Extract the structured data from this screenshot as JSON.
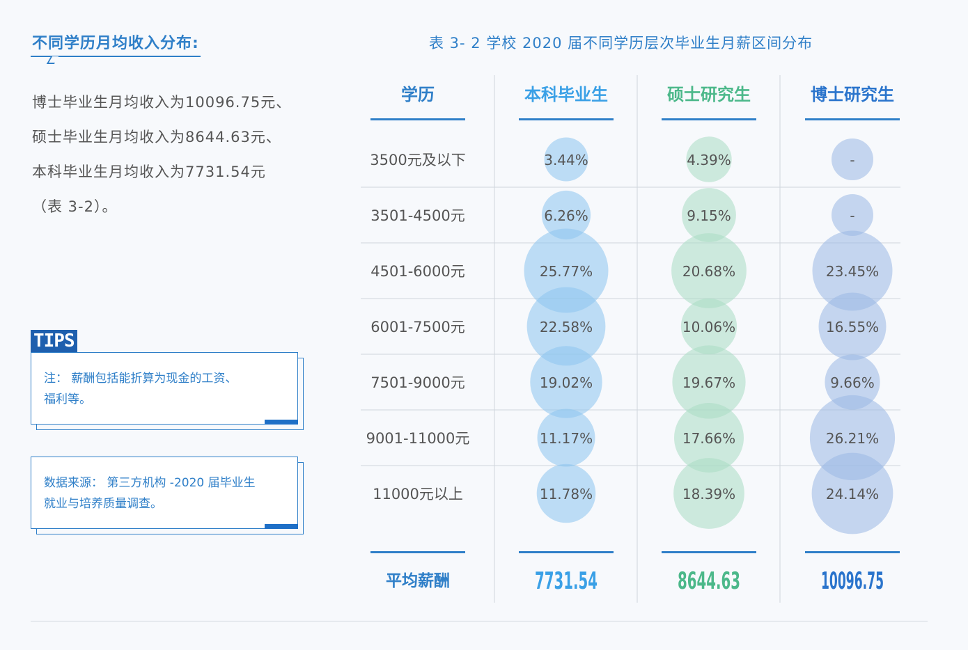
{
  "left_panel": {
    "heading": "不同学历月均收入分布:",
    "summary_lines": [
      "博士毕业生月均收入为10096.75元、",
      "硕士毕业生月均收入为8644.63元、",
      "本科毕业生月均收入为7731.54元",
      "（表 3-2）。"
    ],
    "tips_label": "TIPS",
    "note_lines": [
      "注：  薪酬包括能折算为现金的工资、",
      "福利等。"
    ],
    "source_lines": [
      "数据来源：  第三方机构 -2020 届毕业生",
      "就业与培养质量调查。"
    ]
  },
  "chart_data": {
    "type": "table",
    "title": "表 3- 2  学校 2020 届不同学历层次毕业生月薪区间分布",
    "row_header": "学历",
    "categories": [
      "3500元及以下",
      "3501-4500元",
      "4501-6000元",
      "6001-7500元",
      "7501-9000元",
      "9001-11000元",
      "11000元以上"
    ],
    "series": [
      {
        "name": "本科毕业生",
        "color": "#8dc5ef",
        "header_color": "#3aa0e6",
        "values": [
          3.44,
          6.26,
          25.77,
          22.58,
          19.02,
          11.17,
          11.78
        ],
        "labels": [
          "3.44%",
          "6.26%",
          "25.77%",
          "22.58%",
          "19.02%",
          "11.17%",
          "11.78%"
        ],
        "average": "7731.54"
      },
      {
        "name": "硕士研究生",
        "color": "#a9dcc2",
        "header_color": "#4cb88a",
        "values": [
          4.39,
          9.15,
          20.68,
          10.06,
          19.67,
          17.66,
          18.39
        ],
        "labels": [
          "4.39%",
          "9.15%",
          "20.68%",
          "10.06%",
          "19.67%",
          "17.66%",
          "18.39%"
        ],
        "average": "8644.63"
      },
      {
        "name": "博士研究生",
        "color": "#9ab8e4",
        "header_color": "#2a74cc",
        "values": [
          null,
          null,
          23.45,
          16.55,
          9.66,
          26.21,
          24.14
        ],
        "labels": [
          "-",
          "-",
          "23.45%",
          "16.55%",
          "9.66%",
          "26.21%",
          "24.14%"
        ],
        "average": "10096.75"
      }
    ],
    "average_label": "平均薪酬"
  }
}
